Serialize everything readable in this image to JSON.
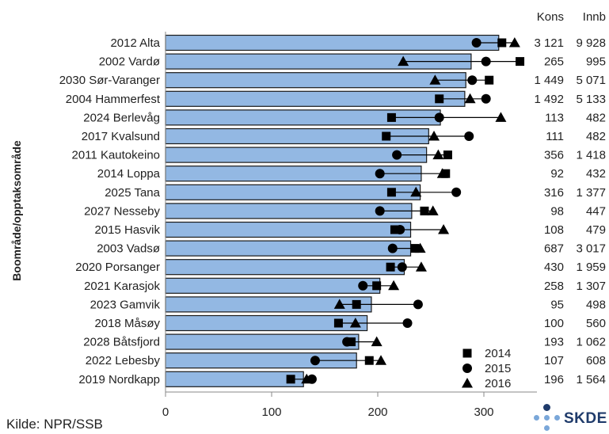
{
  "chart_data": {
    "type": "bar",
    "ylabel": "Boområde/opptaksområde",
    "xlim": [
      0,
      350
    ],
    "x_ticks": [
      0,
      100,
      200,
      300
    ],
    "grid": false,
    "legend_position": "bottom-right",
    "table_headers": [
      "Kons",
      "Innb"
    ],
    "categories": [
      "2012 Alta",
      "2002 Vardø",
      "2030 Sør-Varanger",
      "2004 Hammerfest",
      "2024 Berlevåg",
      "2017 Kvalsund",
      "2011 Kautokeino",
      "2014 Loppa",
      "2025 Tana",
      "2027 Nesseby",
      "2015 Hasvik",
      "2003 Vadsø",
      "2020 Porsanger",
      "2021 Karasjok",
      "2023 Gamvik",
      "2018 Måsøy",
      "2028 Båtsfjord",
      "2022 Lebesby",
      "2019 Nordkapp"
    ],
    "bar_values": [
      314,
      288,
      283,
      282,
      259,
      248,
      246,
      241,
      240,
      232,
      231,
      231,
      225,
      202,
      194,
      190,
      182,
      180,
      130
    ],
    "series": [
      {
        "name": "2014",
        "marker": "square",
        "values": [
          317,
          334,
          305,
          258,
          213,
          208,
          266,
          264,
          213,
          244,
          216,
          235,
          212,
          199,
          180,
          163,
          175,
          192,
          118
        ]
      },
      {
        "name": "2015",
        "marker": "circle",
        "values": [
          293,
          302,
          289,
          302,
          258,
          286,
          218,
          202,
          274,
          202,
          221,
          214,
          223,
          186,
          238,
          228,
          171,
          141,
          138
        ]
      },
      {
        "name": "2016",
        "marker": "triangle",
        "values": [
          329,
          224,
          254,
          287,
          316,
          253,
          257,
          261,
          236,
          252,
          262,
          240,
          241,
          215,
          164,
          179,
          199,
          203,
          133
        ]
      }
    ],
    "table_rows": [
      [
        "3 121",
        "9 928"
      ],
      [
        "265",
        "995"
      ],
      [
        "1 449",
        "5 071"
      ],
      [
        "1 492",
        "5 133"
      ],
      [
        "113",
        "482"
      ],
      [
        "111",
        "482"
      ],
      [
        "356",
        "1 418"
      ],
      [
        "92",
        "432"
      ],
      [
        "316",
        "1 377"
      ],
      [
        "98",
        "447"
      ],
      [
        "108",
        "479"
      ],
      [
        "687",
        "3 017"
      ],
      [
        "430",
        "1 959"
      ],
      [
        "258",
        "1 307"
      ],
      [
        "95",
        "498"
      ],
      [
        "100",
        "560"
      ],
      [
        "193",
        "1 062"
      ],
      [
        "107",
        "608"
      ],
      [
        "196",
        "1 564"
      ]
    ],
    "colors": {
      "bar": "#93b8e3",
      "bar_stroke": "#1a1a1a",
      "marker": "#000000"
    }
  },
  "source_label": "Kilde: NPR/SSB",
  "logo": {
    "text": "SKDE",
    "dot_colors": [
      "#1f3b6b",
      "#7aa7d9"
    ]
  }
}
